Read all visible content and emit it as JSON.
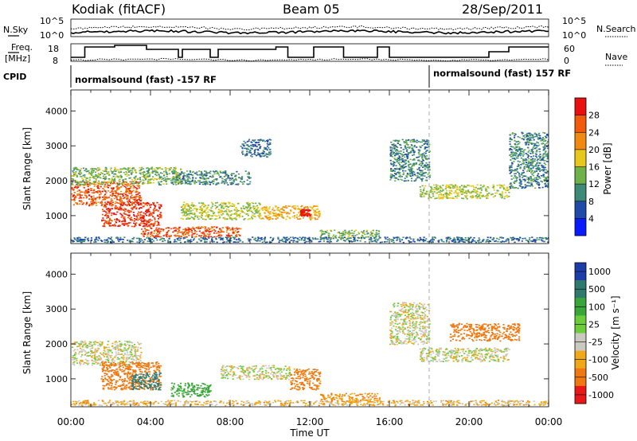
{
  "header": {
    "station": "Kodiak (fitACF)",
    "beam": "Beam 05",
    "date": "28/Sep/2011"
  },
  "noise_panel": {
    "left_label": "N.Sky",
    "right_label": "N.Search",
    "left_ticks": [
      "10^5",
      "10^0"
    ],
    "right_ticks": [
      "10^5",
      "10^0"
    ]
  },
  "freq_panel": {
    "left_label_1": "Freq.",
    "left_label_2": "[MHz]",
    "right_label": "Nave",
    "left_ticks": [
      "18",
      "8"
    ],
    "right_ticks": [
      "60",
      "0"
    ]
  },
  "cpid": {
    "label": "CPID",
    "segments": [
      {
        "text": "normalsound (fast) -157 RF",
        "start_hour": 0
      },
      {
        "text": "normalsound (fast) 157 RF",
        "start_hour": 18
      }
    ]
  },
  "axes": {
    "xlabel": "Time UT",
    "ylabel": "Slant Range [km]",
    "x_ticks": [
      "00:00",
      "04:00",
      "08:00",
      "12:00",
      "16:00",
      "20:00",
      "00:00"
    ],
    "y_ticks": [
      "1000",
      "2000",
      "3000",
      "4000"
    ]
  },
  "power_scale": {
    "label": "Power [dB]",
    "ticks": [
      "4",
      "8",
      "12",
      "16",
      "20",
      "24",
      "28"
    ],
    "colors": [
      "#0a1aff",
      "#1f4aa8",
      "#3d8a78",
      "#6fb24a",
      "#e8c81c",
      "#f08a10",
      "#f25a0c",
      "#e81010"
    ]
  },
  "velocity_scale": {
    "label": "Velocity [m s⁻¹]",
    "ticks": [
      "1000",
      "500",
      "100",
      "25",
      "-25",
      "-100",
      "-500",
      "-1000"
    ],
    "colors": [
      "#1c3ca8",
      "#2f7a6e",
      "#3aa63a",
      "#6ccc3c",
      "#c9c9c0",
      "#f0a818",
      "#f07810",
      "#e81818"
    ]
  },
  "chart_data": {
    "type": "heatmap",
    "title": "Kodiak (fitACF)  Beam 05  28/Sep/2011",
    "xlabel": "Time UT",
    "ylabel": "Slant Range [km]",
    "xlim": [
      0,
      24
    ],
    "ylim": [
      200,
      4600
    ],
    "power_scatter_regions": [
      {
        "t0": 0.0,
        "t1": 3.5,
        "r0": 1300,
        "r1": 2000,
        "power": 24
      },
      {
        "t0": 1.5,
        "t1": 4.5,
        "r0": 700,
        "r1": 1400,
        "power": 26
      },
      {
        "t0": 3.5,
        "t1": 8.5,
        "r0": 400,
        "r1": 700,
        "power": 24
      },
      {
        "t0": 0.0,
        "t1": 5.5,
        "r0": 1900,
        "r1": 2400,
        "power": 12
      },
      {
        "t0": 5.5,
        "t1": 9.5,
        "r0": 900,
        "r1": 1400,
        "power": 14
      },
      {
        "t0": 9.5,
        "t1": 12.5,
        "r0": 900,
        "r1": 1300,
        "power": 18
      },
      {
        "t0": 11.5,
        "t1": 12.0,
        "r0": 1000,
        "r1": 1200,
        "power": 28
      },
      {
        "t0": 5.0,
        "t1": 9.0,
        "r0": 1900,
        "r1": 2300,
        "power": 8
      },
      {
        "t0": 8.5,
        "t1": 10.0,
        "r0": 2700,
        "r1": 3200,
        "power": 6
      },
      {
        "t0": 12.5,
        "t1": 15.5,
        "r0": 350,
        "r1": 600,
        "power": 12
      },
      {
        "t0": 16.0,
        "t1": 18.0,
        "r0": 2000,
        "r1": 3200,
        "power": 8
      },
      {
        "t0": 17.5,
        "t1": 22.0,
        "r0": 1500,
        "r1": 1900,
        "power": 14
      },
      {
        "t0": 22.0,
        "t1": 24.0,
        "r0": 1800,
        "r1": 3400,
        "power": 8
      },
      {
        "t0": 0.0,
        "t1": 24.0,
        "r0": 250,
        "r1": 400,
        "power": 6
      }
    ],
    "velocity_scatter_regions": [
      {
        "t0": 0.0,
        "t1": 3.5,
        "r0": 1400,
        "r1": 2100,
        "velocity": 0
      },
      {
        "t0": 1.5,
        "t1": 4.5,
        "r0": 700,
        "r1": 1500,
        "velocity": -300
      },
      {
        "t0": 3.0,
        "t1": 4.5,
        "r0": 700,
        "r1": 1200,
        "velocity": 700
      },
      {
        "t0": 5.0,
        "t1": 7.0,
        "r0": 500,
        "r1": 900,
        "velocity": 150
      },
      {
        "t0": 7.5,
        "t1": 11.0,
        "r0": 1000,
        "r1": 1400,
        "velocity": 0
      },
      {
        "t0": 11.0,
        "t1": 12.5,
        "r0": 700,
        "r1": 1300,
        "velocity": -150
      },
      {
        "t0": 12.5,
        "t1": 15.5,
        "r0": 350,
        "r1": 600,
        "velocity": -100
      },
      {
        "t0": 16.0,
        "t1": 18.0,
        "r0": 2000,
        "r1": 3200,
        "velocity": 0
      },
      {
        "t0": 17.5,
        "t1": 22.0,
        "r0": 1500,
        "r1": 1900,
        "velocity": 0
      },
      {
        "t0": 19.0,
        "t1": 22.5,
        "r0": 2100,
        "r1": 2600,
        "velocity": -300
      },
      {
        "t0": 0.0,
        "t1": 24.0,
        "r0": 250,
        "r1": 400,
        "velocity": -50
      }
    ]
  }
}
